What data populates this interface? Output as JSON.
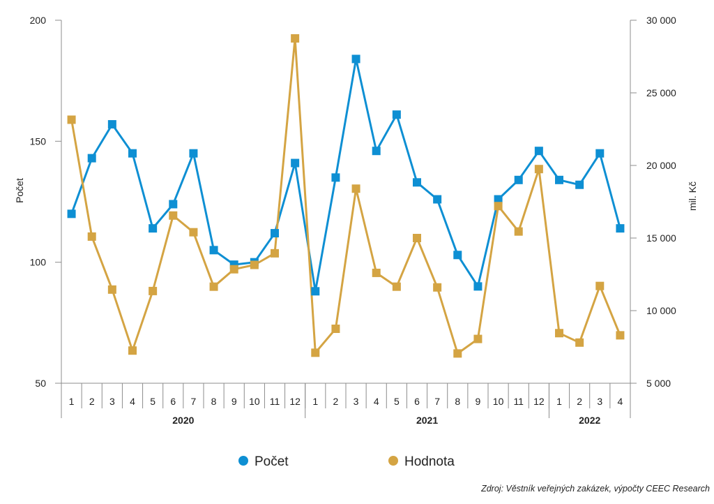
{
  "chart_data": {
    "type": "line",
    "title": "",
    "categories": [
      "1",
      "2",
      "3",
      "4",
      "5",
      "6",
      "7",
      "8",
      "9",
      "10",
      "11",
      "12",
      "1",
      "2",
      "3",
      "4",
      "5",
      "6",
      "7",
      "8",
      "9",
      "10",
      "11",
      "12",
      "1",
      "2",
      "3",
      "4"
    ],
    "groups": [
      {
        "label": "2020",
        "start": 0,
        "end": 11
      },
      {
        "label": "2021",
        "start": 12,
        "end": 23
      },
      {
        "label": "2022",
        "start": 24,
        "end": 27
      }
    ],
    "left_axis": {
      "label": "Počet",
      "min": 50,
      "max": 200,
      "ticks": [
        50,
        100,
        150,
        200
      ],
      "tick_labels": [
        "50",
        "100",
        "150",
        "200"
      ]
    },
    "right_axis": {
      "label": "mil. Kč",
      "min": 5000,
      "max": 30000,
      "ticks": [
        5000,
        10000,
        15000,
        20000,
        25000,
        30000
      ],
      "tick_labels": [
        "5 000",
        "10 000",
        "15 000",
        "20 000",
        "25 000",
        "30 000"
      ]
    },
    "series": [
      {
        "name": "Počet",
        "axis": "left",
        "color": "#0e8fd3",
        "values": [
          120,
          143,
          157,
          145,
          114,
          124,
          145,
          105,
          99,
          100,
          112,
          141,
          88,
          135,
          184,
          146,
          161,
          133,
          126,
          103,
          90,
          126,
          134,
          146,
          134,
          132,
          145,
          114
        ]
      },
      {
        "name": "Hodnota",
        "axis": "right",
        "color": "#d4a443",
        "values": [
          23150,
          15100,
          11450,
          7250,
          11350,
          16550,
          15400,
          11650,
          12850,
          13150,
          13950,
          28750,
          7100,
          8750,
          18400,
          12600,
          11650,
          15000,
          11600,
          7050,
          8050,
          17200,
          15450,
          19750,
          8450,
          7800,
          11700,
          8300
        ]
      }
    ],
    "legend": {
      "position": "bottom",
      "labels": [
        "Počet",
        "Hodnota"
      ]
    },
    "source": "Zdroj: Věstník veřejných zakázek, výpočty CEEC Research"
  }
}
